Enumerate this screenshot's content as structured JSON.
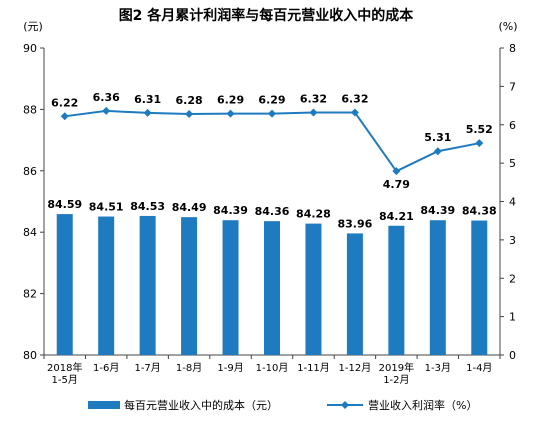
{
  "chart_data": {
    "type": "bar+line",
    "title": "图2 各月累计利润率与每百元营业收入中的成本",
    "left_axis": {
      "unit_label": "(元)",
      "min": 80,
      "max": 90,
      "ticks": [
        "80",
        "82",
        "84",
        "86",
        "88",
        "90"
      ]
    },
    "right_axis": {
      "unit_label": "(%)",
      "min": 0,
      "max": 8,
      "ticks": [
        "0",
        "1",
        "2",
        "3",
        "4",
        "5",
        "6",
        "7",
        "8"
      ]
    },
    "categories": [
      [
        "2018年",
        "1-5月"
      ],
      [
        "1-6月"
      ],
      [
        "1-7月"
      ],
      [
        "1-8月"
      ],
      [
        "1-9月"
      ],
      [
        "1-10月"
      ],
      [
        "1-11月"
      ],
      [
        "1-12月"
      ],
      [
        "2019年",
        "1-2月"
      ],
      [
        "1-3月"
      ],
      [
        "1-4月"
      ]
    ],
    "series": [
      {
        "name": "每百元营业收入中的成本（元）",
        "type": "bar",
        "axis": "left",
        "color": "#1f7bbf",
        "values": [
          84.59,
          84.51,
          84.53,
          84.49,
          84.39,
          84.36,
          84.28,
          83.96,
          84.21,
          84.39,
          84.38
        ],
        "labels": [
          "84.59",
          "84.51",
          "84.53",
          "84.49",
          "84.39",
          "84.36",
          "84.28",
          "83.96",
          "84.21",
          "84.39",
          "84.38"
        ]
      },
      {
        "name": "营业收入利润率（%）",
        "type": "line",
        "axis": "right",
        "color": "#1f7bbf",
        "values": [
          6.22,
          6.36,
          6.31,
          6.28,
          6.29,
          6.29,
          6.32,
          6.32,
          4.79,
          5.31,
          5.52
        ],
        "labels": [
          "6.22",
          "6.36",
          "6.31",
          "6.28",
          "6.29",
          "6.29",
          "6.32",
          "6.32",
          "4.79",
          "5.31",
          "5.52"
        ]
      }
    ],
    "legend": {
      "position": "bottom",
      "bar_label": "每百元营业收入中的成本（元）",
      "line_label": "营业收入利润率（%）"
    },
    "grid": false
  }
}
